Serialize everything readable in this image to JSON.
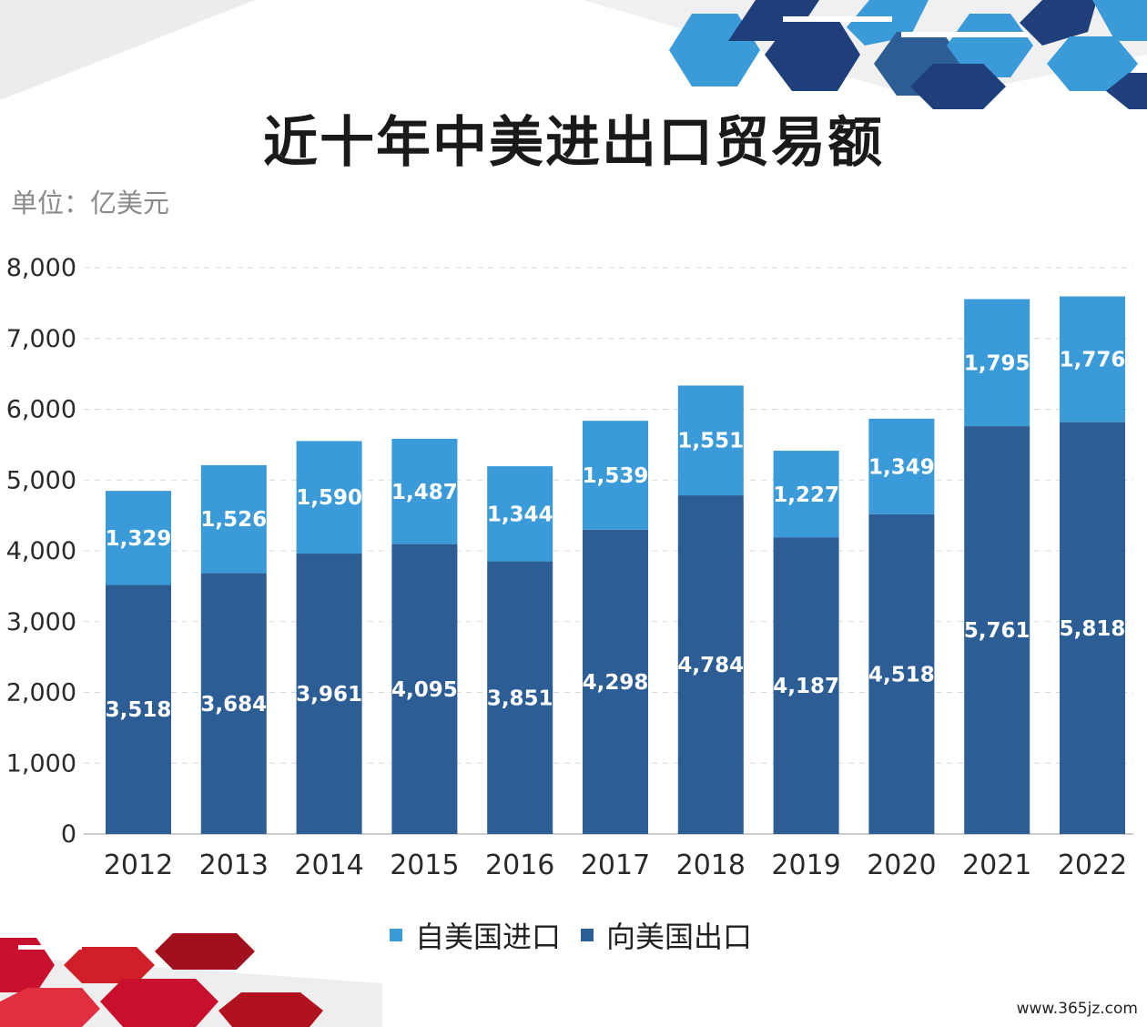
{
  "title": "近十年中美进出口贸易额",
  "unit_label": "单位：亿美元",
  "watermark": "www.365jz.com",
  "colors": {
    "import": "#3b9ad8",
    "export": "#2c5d94",
    "grid": "#d8d8d8",
    "axis": "#bbbbbb"
  },
  "legend": {
    "import_label": "自美国进口",
    "export_label": "向美国出口"
  },
  "chart_data": {
    "type": "bar",
    "stacked": true,
    "title": "近十年中美进出口贸易额",
    "unit": "单位：亿美元",
    "categories": [
      "2012",
      "2013",
      "2014",
      "2015",
      "2016",
      "2017",
      "2018",
      "2019",
      "2020",
      "2021",
      "2022"
    ],
    "series": [
      {
        "name": "向美国出口",
        "values": [
          3518,
          3684,
          3961,
          4095,
          3851,
          4298,
          4784,
          4187,
          4518,
          5761,
          5818
        ]
      },
      {
        "name": "自美国进口",
        "values": [
          1329,
          1526,
          1590,
          1487,
          1344,
          1539,
          1551,
          1227,
          1349,
          1795,
          1776
        ]
      }
    ],
    "value_labels": {
      "export": [
        "3,518",
        "3,684",
        "3,961",
        "4,095",
        "3,851",
        "4,298",
        "4,784",
        "4,187",
        "4,518",
        "5,761",
        "5,818"
      ],
      "import": [
        "1,329",
        "1,526",
        "1,590",
        "1,487",
        "1,344",
        "1,539",
        "1,551",
        "1,227",
        "1,349",
        "1,795",
        "1,776"
      ]
    },
    "ylim": [
      0,
      8000
    ],
    "yticks": [
      0,
      1000,
      2000,
      3000,
      4000,
      5000,
      6000,
      7000,
      8000
    ],
    "ytick_labels": [
      "0",
      "1,000",
      "2,000",
      "3,000",
      "4,000",
      "5,000",
      "6,000",
      "7,000",
      "8,000"
    ],
    "grid": true,
    "legend_position": "bottom"
  }
}
